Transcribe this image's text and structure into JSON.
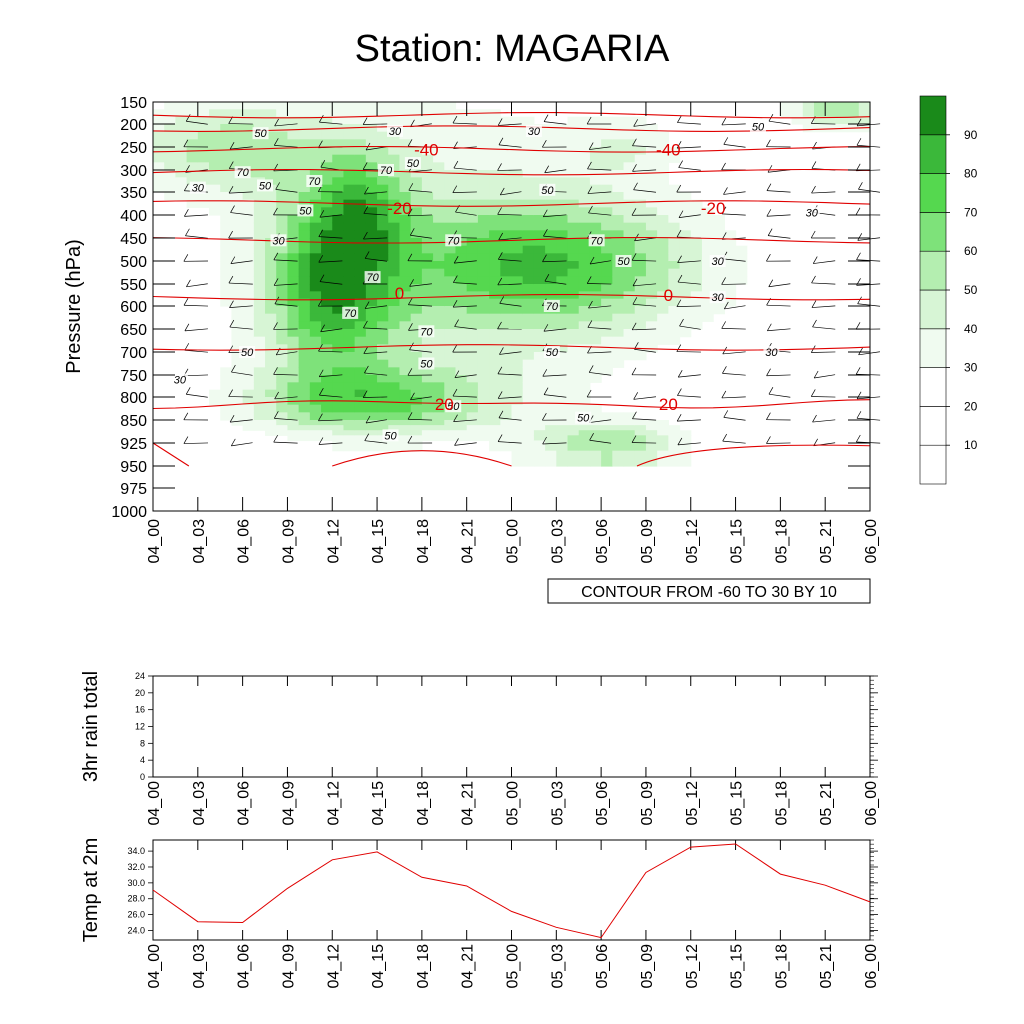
{
  "title": "Station: MAGARIA",
  "time_labels": [
    "04_00",
    "04_03",
    "04_06",
    "04_09",
    "04_12",
    "04_15",
    "04_18",
    "04_21",
    "05_00",
    "05_03",
    "05_06",
    "05_09",
    "05_12",
    "05_15",
    "05_18",
    "05_21",
    "06_00"
  ],
  "chart_data": [
    {
      "type": "heatmap",
      "name": "relative-humidity-contour",
      "ylabel": "Pressure (hPa)",
      "y_ticks": [
        150,
        200,
        250,
        300,
        350,
        400,
        450,
        500,
        550,
        600,
        650,
        700,
        750,
        800,
        850,
        925,
        950,
        975,
        1000
      ],
      "colorbar": {
        "levels": [
          10,
          20,
          30,
          40,
          50,
          60,
          70,
          80,
          90
        ],
        "colors": [
          "#ffffff",
          "#ffffff",
          "#ffffff",
          "#f0fbf0",
          "#d7f5d5",
          "#b4eeb0",
          "#7ee27a",
          "#55d84f",
          "#3bb83a",
          "#1a8a1a"
        ]
      },
      "contour_line_labels": [
        {
          "x": 2.4,
          "p": 220,
          "v": "50"
        },
        {
          "x": 5.4,
          "p": 215,
          "v": "30"
        },
        {
          "x": 8.5,
          "p": 215,
          "v": "30"
        },
        {
          "x": 13.5,
          "p": 205,
          "v": "50"
        },
        {
          "x": 2.0,
          "p": 305,
          "v": "70"
        },
        {
          "x": 2.5,
          "p": 335,
          "v": "50"
        },
        {
          "x": 1.0,
          "p": 340,
          "v": "30"
        },
        {
          "x": 3.6,
          "p": 325,
          "v": "70"
        },
        {
          "x": 5.2,
          "p": 300,
          "v": "70"
        },
        {
          "x": 5.8,
          "p": 285,
          "v": "50"
        },
        {
          "x": 8.8,
          "p": 345,
          "v": "50"
        },
        {
          "x": 3.4,
          "p": 390,
          "v": "50"
        },
        {
          "x": 14.7,
          "p": 395,
          "v": "30"
        },
        {
          "x": 6.7,
          "p": 455,
          "v": "70"
        },
        {
          "x": 2.8,
          "p": 455,
          "v": "30"
        },
        {
          "x": 9.9,
          "p": 455,
          "v": "70"
        },
        {
          "x": 10.5,
          "p": 500,
          "v": "50"
        },
        {
          "x": 12.6,
          "p": 500,
          "v": "30"
        },
        {
          "x": 4.9,
          "p": 535,
          "v": "70"
        },
        {
          "x": 8.9,
          "p": 600,
          "v": "70"
        },
        {
          "x": 12.6,
          "p": 580,
          "v": "30"
        },
        {
          "x": 4.4,
          "p": 615,
          "v": "70"
        },
        {
          "x": 6.1,
          "p": 655,
          "v": "70"
        },
        {
          "x": 2.1,
          "p": 700,
          "v": "50"
        },
        {
          "x": 8.9,
          "p": 700,
          "v": "50"
        },
        {
          "x": 13.8,
          "p": 700,
          "v": "30"
        },
        {
          "x": 6.1,
          "p": 725,
          "v": "50"
        },
        {
          "x": 0.6,
          "p": 760,
          "v": "30"
        },
        {
          "x": 6.7,
          "p": 820,
          "v": "50"
        },
        {
          "x": 9.6,
          "p": 845,
          "v": "50"
        },
        {
          "x": 5.3,
          "p": 900,
          "v": "50"
        }
      ],
      "temperature_labels": [
        {
          "x": 6.1,
          "p": 255,
          "v": "-40"
        },
        {
          "x": 11.5,
          "p": 255,
          "v": "-40"
        },
        {
          "x": 5.5,
          "p": 385,
          "v": "-20"
        },
        {
          "x": 12.5,
          "p": 385,
          "v": "-20"
        },
        {
          "x": 5.5,
          "p": 570,
          "v": "0"
        },
        {
          "x": 11.5,
          "p": 575,
          "v": "0"
        },
        {
          "x": 6.5,
          "p": 815,
          "v": "20"
        },
        {
          "x": 11.5,
          "p": 815,
          "v": "20"
        }
      ],
      "note": "CONTOUR FROM -60 TO 30 BY 10"
    },
    {
      "type": "line",
      "name": "rain",
      "ylabel": "3hr rain total",
      "ylim": [
        0,
        24
      ],
      "y_ticks": [
        "0",
        "4",
        "8",
        "12",
        "16",
        "20",
        "24"
      ],
      "x": [
        "04_00",
        "04_03",
        "04_06",
        "04_09",
        "04_12",
        "04_15",
        "04_18",
        "04_21",
        "05_00",
        "05_03",
        "05_06",
        "05_09",
        "05_12",
        "05_15",
        "05_18",
        "05_21",
        "06_00"
      ],
      "values": [
        0,
        0,
        0,
        0,
        0,
        0,
        0,
        0,
        0,
        0,
        0,
        0,
        0,
        0,
        0,
        0,
        0
      ]
    },
    {
      "type": "line",
      "name": "temp",
      "ylabel": "Temp at 2m",
      "ylim": [
        22.8,
        35.4
      ],
      "y_ticks": [
        "24.0",
        "26.0",
        "28.0",
        "30.0",
        "32.0",
        "34.0"
      ],
      "x": [
        "04_00",
        "04_03",
        "04_06",
        "04_09",
        "04_12",
        "04_15",
        "04_18",
        "04_21",
        "05_00",
        "05_03",
        "05_06",
        "05_09",
        "05_12",
        "05_15",
        "05_18",
        "05_21",
        "06_00"
      ],
      "values": [
        29.1,
        25.1,
        25.0,
        29.3,
        32.9,
        33.9,
        30.7,
        29.6,
        26.4,
        24.4,
        23.1,
        31.3,
        34.5,
        34.9,
        31.1,
        29.7,
        27.6
      ],
      "color": "#e00000"
    }
  ]
}
